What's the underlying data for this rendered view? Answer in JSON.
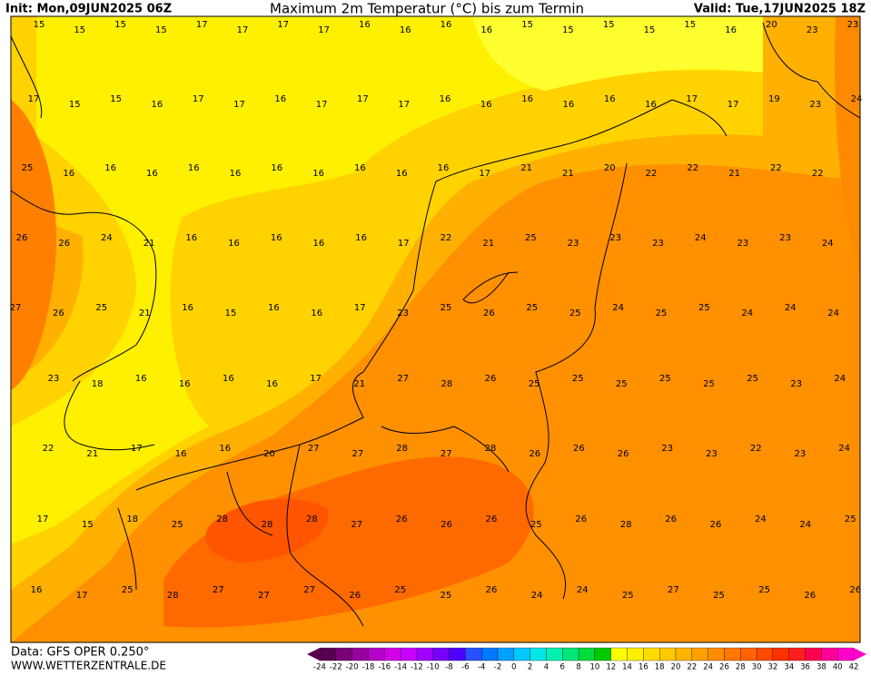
{
  "header": {
    "init": "Init: Mon,09JUN2025 06Z",
    "title": "Maximum 2m Temperatur (°C) bis zum Termin",
    "valid": "Valid: Tue,17JUN2025 18Z"
  },
  "footer": {
    "data": "Data: GFS OPER 0.250°",
    "site": "WWW.WETTERZENTRALE.DE"
  },
  "map": {
    "rows": [
      [
        15,
        15,
        15,
        15,
        17,
        17,
        17,
        17,
        16,
        16,
        16,
        16,
        15,
        15,
        15,
        15,
        15,
        16,
        20,
        23,
        23
      ],
      [
        17,
        15,
        15,
        16,
        17,
        17,
        16,
        17,
        17,
        17,
        16,
        16,
        16,
        16,
        16,
        16,
        17,
        17,
        19,
        23,
        24
      ],
      [
        25,
        16,
        16,
        16,
        16,
        16,
        16,
        16,
        16,
        16,
        16,
        17,
        21,
        21,
        20,
        22,
        22,
        21,
        22,
        22
      ],
      [
        26,
        26,
        24,
        21,
        16,
        16,
        16,
        16,
        16,
        17,
        22,
        21,
        25,
        23,
        23,
        23,
        24,
        23,
        23,
        24
      ],
      [
        27,
        26,
        25,
        21,
        16,
        15,
        16,
        16,
        17,
        23,
        25,
        26,
        25,
        25,
        24,
        25,
        25,
        24,
        24,
        24
      ],
      [
        23,
        18,
        16,
        16,
        16,
        16,
        17,
        21,
        27,
        28,
        26,
        25,
        25,
        25,
        25,
        25,
        25,
        23,
        24
      ],
      [
        22,
        21,
        17,
        16,
        16,
        20,
        27,
        27,
        28,
        27,
        28,
        26,
        26,
        26,
        23,
        23,
        22,
        23,
        24
      ],
      [
        17,
        15,
        18,
        25,
        28,
        28,
        28,
        27,
        26,
        26,
        26,
        25,
        26,
        28,
        26,
        26,
        24,
        24,
        25
      ],
      [
        16,
        17,
        25,
        28,
        27,
        27,
        27,
        26,
        25,
        25,
        26,
        24,
        24,
        25,
        27,
        25,
        25,
        26,
        26
      ]
    ]
  },
  "colorbar": {
    "labels": [
      -24,
      -22,
      -20,
      -18,
      -16,
      -14,
      -12,
      -10,
      -8,
      -6,
      -4,
      -2,
      0,
      2,
      4,
      6,
      8,
      10,
      12,
      14,
      16,
      18,
      20,
      22,
      24,
      26,
      28,
      30,
      32,
      34,
      36,
      38,
      40,
      42
    ],
    "colors": [
      "#5a0050",
      "#780078",
      "#9600a0",
      "#b400c8",
      "#d200e6",
      "#c800ff",
      "#a000ff",
      "#7800ff",
      "#5000ff",
      "#2850ff",
      "#0078ff",
      "#00a0ff",
      "#00c8ff",
      "#00e6e6",
      "#00f0b4",
      "#00e678",
      "#00dc3c",
      "#00c800",
      "#ffff00",
      "#fff000",
      "#ffdc00",
      "#ffc800",
      "#ffb400",
      "#ffa000",
      "#ff8c00",
      "#ff7800",
      "#ff6400",
      "#ff4b00",
      "#ff3200",
      "#ff1e1e",
      "#ff0050",
      "#ff0096",
      "#ff00c8"
    ]
  }
}
